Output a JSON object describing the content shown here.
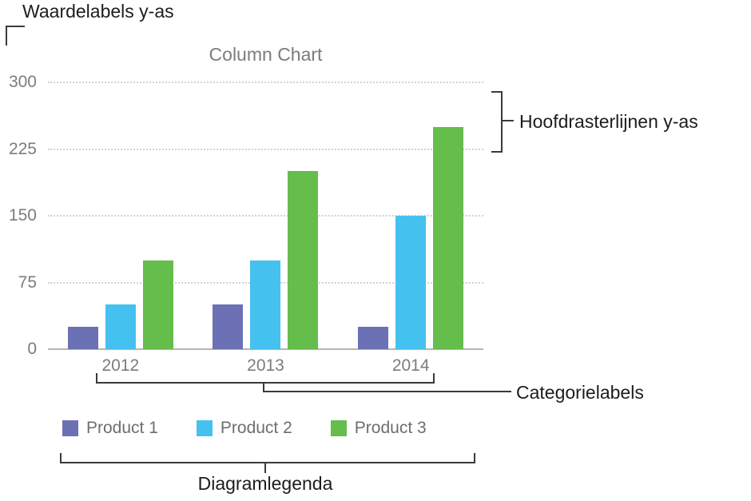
{
  "chart_data": {
    "type": "bar",
    "title": "Column Chart",
    "categories": [
      "2012",
      "2013",
      "2014"
    ],
    "series": [
      {
        "name": "Product 1",
        "color": "#6c70b5",
        "values": [
          25,
          50,
          25
        ]
      },
      {
        "name": "Product 2",
        "color": "#45c1f0",
        "values": [
          50,
          100,
          150
        ]
      },
      {
        "name": "Product 3",
        "color": "#65bd4c",
        "values": [
          100,
          200,
          250
        ]
      }
    ],
    "y_ticks": [
      0,
      75,
      150,
      225,
      300
    ],
    "ylim": [
      0,
      300
    ],
    "grid": "horizontal dotted gridlines",
    "legend_position": "bottom"
  },
  "annotations": {
    "y_value_labels": "Waardelabels y-as",
    "y_gridlines": "Hoofdrasterlijnen y-as",
    "category_labels": "Categorielabels",
    "chart_legend": "Diagramlegenda"
  }
}
